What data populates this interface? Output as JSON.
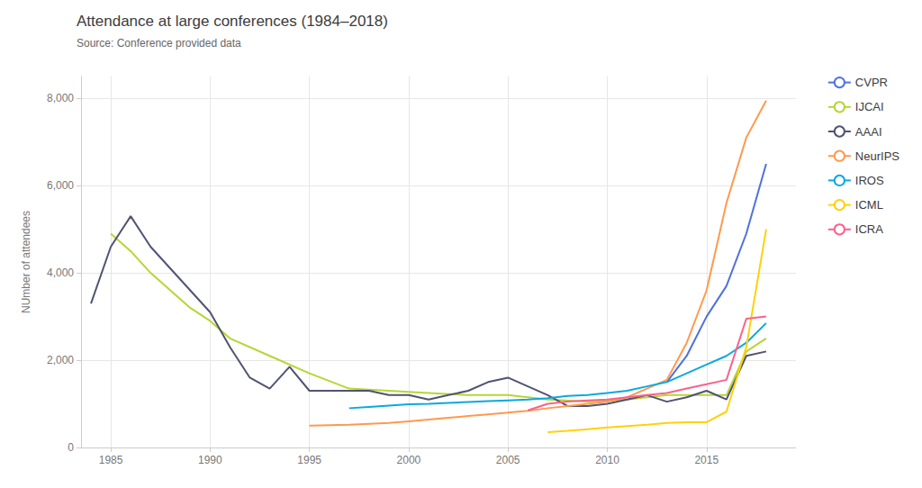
{
  "chart_data": {
    "type": "line",
    "title": "Attendance at large conferences (1984–2018)",
    "subtitle": "Source: Conference provided data",
    "ylabel": "NUmber of attendees",
    "xlim": [
      1983.5,
      2019.5
    ],
    "xticks": [
      1985,
      1990,
      1995,
      2000,
      2005,
      2010,
      2015
    ],
    "ylim": [
      0,
      8500
    ],
    "yticks": [
      0,
      {
        "value": 2000,
        "label": "2,000"
      },
      {
        "value": 4000,
        "label": "4,000"
      },
      {
        "value": 6000,
        "label": "6,000"
      },
      {
        "value": 8000,
        "label": "8,000"
      }
    ],
    "grid": true,
    "legend": "right",
    "series": [
      {
        "name": "CVPR",
        "x": [
          2013,
          2014,
          2015,
          2016,
          2017,
          2018
        ],
        "values": [
          1500,
          2100,
          3000,
          3700,
          4900,
          6500
        ]
      },
      {
        "name": "IJCAI",
        "x": [
          1985,
          1986,
          1987,
          1988,
          1989,
          1990,
          1991,
          1993,
          1995,
          1997,
          1999,
          2001,
          2003,
          2005,
          2007,
          2009,
          2011,
          2013,
          2015,
          2016,
          2017,
          2018
        ],
        "values": [
          4900,
          4500,
          4000,
          3600,
          3200,
          2900,
          2500,
          2100,
          1700,
          1350,
          1300,
          1250,
          1200,
          1200,
          1100,
          1050,
          1100,
          1200,
          1200,
          1200,
          2200,
          2500
        ]
      },
      {
        "name": "AAAI",
        "x": [
          1984,
          1985,
          1986,
          1987,
          1988,
          1989,
          1990,
          1991,
          1992,
          1993,
          1994,
          1995,
          1996,
          1997,
          1998,
          1999,
          2000,
          2001,
          2002,
          2003,
          2004,
          2005,
          2006,
          2007,
          2008,
          2009,
          2010,
          2011,
          2012,
          2013,
          2014,
          2015,
          2016,
          2017,
          2018
        ],
        "values": [
          3300,
          4600,
          5300,
          4600,
          4100,
          3600,
          3100,
          2300,
          1600,
          1350,
          1850,
          1300,
          1300,
          1300,
          1300,
          1200,
          1200,
          1100,
          1200,
          1300,
          1500,
          1600,
          1400,
          1200,
          950,
          950,
          1000,
          1100,
          1200,
          1050,
          1150,
          1300,
          1100,
          2100,
          2200
        ]
      },
      {
        "name": "NeurIPS",
        "x": [
          1995,
          1996,
          1997,
          1998,
          1999,
          2000,
          2001,
          2002,
          2003,
          2004,
          2005,
          2006,
          2007,
          2008,
          2009,
          2010,
          2011,
          2012,
          2013,
          2014,
          2015,
          2016,
          2017,
          2018
        ],
        "values": [
          500,
          510,
          520,
          540,
          560,
          600,
          640,
          680,
          720,
          760,
          800,
          840,
          900,
          950,
          1000,
          1050,
          1150,
          1350,
          1550,
          2400,
          3600,
          5600,
          7100,
          7950
        ]
      },
      {
        "name": "IROS",
        "x": [
          1997,
          1998,
          1999,
          2000,
          2001,
          2002,
          2003,
          2004,
          2005,
          2006,
          2007,
          2008,
          2009,
          2010,
          2011,
          2012,
          2013,
          2014,
          2015,
          2016,
          2017,
          2018
        ],
        "values": [
          900,
          930,
          960,
          990,
          1000,
          1020,
          1040,
          1060,
          1080,
          1100,
          1130,
          1180,
          1200,
          1250,
          1300,
          1400,
          1500,
          1700,
          1900,
          2100,
          2400,
          2850
        ]
      },
      {
        "name": "ICML",
        "x": [
          2007,
          2008,
          2009,
          2010,
          2011,
          2012,
          2013,
          2014,
          2015,
          2016,
          2017,
          2018
        ],
        "values": [
          350,
          380,
          420,
          460,
          490,
          520,
          560,
          580,
          580,
          820,
          2300,
          5000
        ]
      },
      {
        "name": "ICRA",
        "x": [
          2006,
          2007,
          2008,
          2009,
          2010,
          2011,
          2012,
          2013,
          2014,
          2015,
          2016,
          2017,
          2018
        ],
        "values": [
          850,
          1000,
          1050,
          1080,
          1100,
          1150,
          1200,
          1250,
          1350,
          1450,
          1550,
          2950,
          3000
        ]
      }
    ]
  }
}
